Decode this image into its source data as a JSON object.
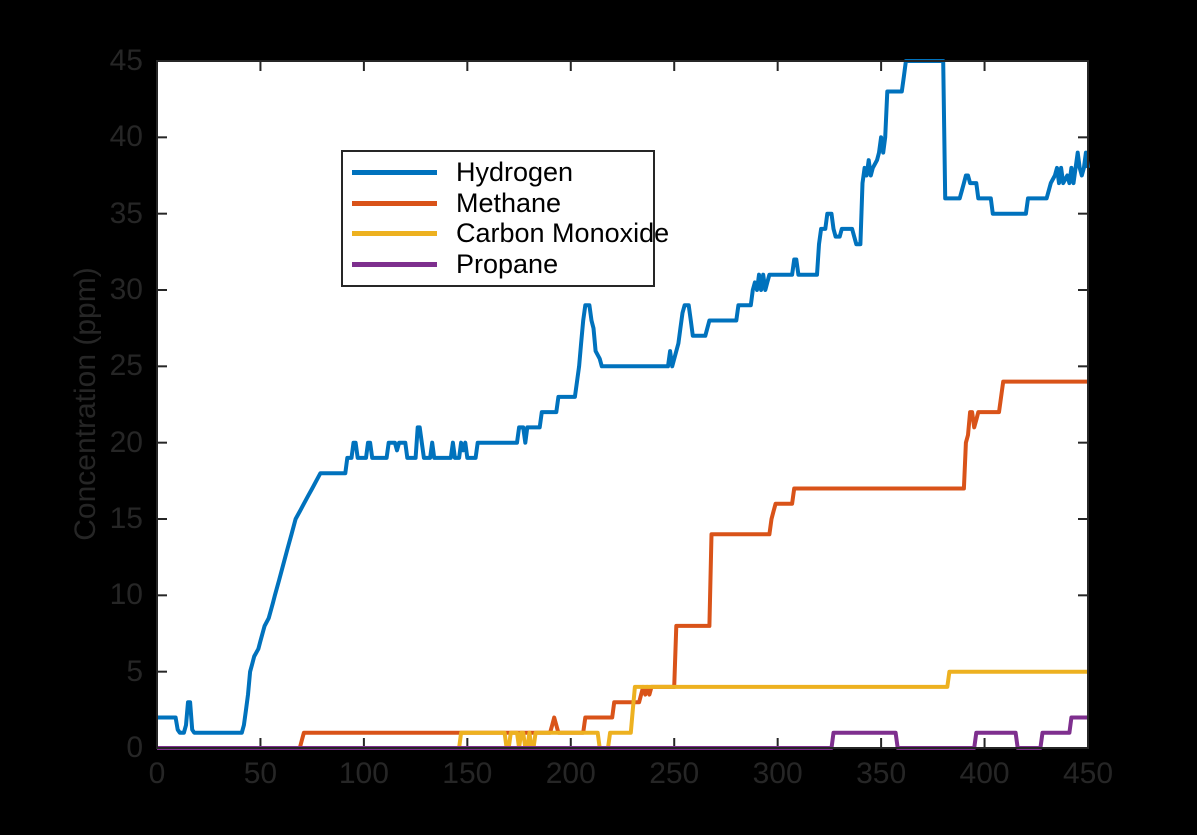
{
  "figure": {
    "background": "#000000",
    "plot_background": "#ffffff",
    "axis_color": "#262626",
    "tick_label_color": "#262626",
    "legend_text_color": "#000000"
  },
  "chart_data": {
    "type": "line",
    "title": "",
    "xlabel": "",
    "ylabel": "Concentration (ppm)",
    "xlim": [
      0,
      450
    ],
    "ylim": [
      0,
      45
    ],
    "xticks": [
      0,
      50,
      100,
      150,
      200,
      250,
      300,
      350,
      400,
      450
    ],
    "yticks": [
      0,
      5,
      10,
      15,
      20,
      25,
      30,
      35,
      40,
      45
    ],
    "grid": false,
    "legend_position": "upper-left",
    "line_width": 4,
    "series": [
      {
        "name": "Hydrogen",
        "color": "#0072BD",
        "points": [
          [
            0,
            2
          ],
          [
            9,
            2
          ],
          [
            10,
            1.2
          ],
          [
            11,
            1
          ],
          [
            13,
            1
          ],
          [
            14,
            1.5
          ],
          [
            15,
            3
          ],
          [
            16,
            3
          ],
          [
            17,
            1.2
          ],
          [
            18,
            1
          ],
          [
            41,
            1
          ],
          [
            42,
            1.5
          ],
          [
            43,
            2.5
          ],
          [
            44,
            3.5
          ],
          [
            45,
            5
          ],
          [
            46,
            5.5
          ],
          [
            47,
            6
          ],
          [
            49,
            6.5
          ],
          [
            50,
            7
          ],
          [
            51,
            7.5
          ],
          [
            52,
            8
          ],
          [
            54,
            8.5
          ],
          [
            55,
            9
          ],
          [
            56,
            9.5
          ],
          [
            57,
            10
          ],
          [
            59,
            11
          ],
          [
            61,
            12
          ],
          [
            63,
            13
          ],
          [
            65,
            14
          ],
          [
            67,
            15
          ],
          [
            69,
            15.5
          ],
          [
            71,
            16
          ],
          [
            73,
            16.5
          ],
          [
            75,
            17
          ],
          [
            77,
            17.5
          ],
          [
            79,
            18
          ],
          [
            91,
            18
          ],
          [
            92,
            19
          ],
          [
            94,
            19
          ],
          [
            95,
            20
          ],
          [
            96,
            20
          ],
          [
            97,
            19
          ],
          [
            101,
            19
          ],
          [
            102,
            20
          ],
          [
            103,
            20
          ],
          [
            104,
            19
          ],
          [
            111,
            19
          ],
          [
            112,
            20
          ],
          [
            115,
            20
          ],
          [
            116,
            19.5
          ],
          [
            117,
            20
          ],
          [
            120,
            20
          ],
          [
            121,
            19
          ],
          [
            125,
            19
          ],
          [
            126,
            21
          ],
          [
            127,
            21
          ],
          [
            128,
            20
          ],
          [
            129,
            19
          ],
          [
            132,
            19
          ],
          [
            133,
            20
          ],
          [
            134,
            19
          ],
          [
            142,
            19
          ],
          [
            143,
            20
          ],
          [
            144,
            19
          ],
          [
            146,
            19
          ],
          [
            147,
            20
          ],
          [
            148,
            19.5
          ],
          [
            149,
            20
          ],
          [
            150,
            19
          ],
          [
            154,
            19
          ],
          [
            155,
            20
          ],
          [
            174,
            20
          ],
          [
            175,
            21
          ],
          [
            177,
            21
          ],
          [
            178,
            20
          ],
          [
            179,
            21
          ],
          [
            185,
            21
          ],
          [
            186,
            22
          ],
          [
            193,
            22
          ],
          [
            194,
            23
          ],
          [
            202,
            23
          ],
          [
            203,
            24
          ],
          [
            204,
            25
          ],
          [
            205,
            26.5
          ],
          [
            206,
            28
          ],
          [
            207,
            29
          ],
          [
            209,
            29
          ],
          [
            210,
            28
          ],
          [
            211,
            27.5
          ],
          [
            212,
            26
          ],
          [
            214,
            25.5
          ],
          [
            215,
            25
          ],
          [
            247,
            25
          ],
          [
            248,
            26
          ],
          [
            249,
            25
          ],
          [
            251,
            26
          ],
          [
            252,
            26.5
          ],
          [
            253,
            27.5
          ],
          [
            254,
            28.5
          ],
          [
            255,
            29
          ],
          [
            257,
            29
          ],
          [
            258,
            28
          ],
          [
            259,
            27
          ],
          [
            265,
            27
          ],
          [
            267,
            28
          ],
          [
            280,
            28
          ],
          [
            281,
            29
          ],
          [
            287,
            29
          ],
          [
            288,
            30
          ],
          [
            289,
            30.5
          ],
          [
            290,
            30
          ],
          [
            291,
            31
          ],
          [
            292,
            30
          ],
          [
            293,
            31
          ],
          [
            294,
            30
          ],
          [
            295,
            30.5
          ],
          [
            296,
            31
          ],
          [
            307,
            31
          ],
          [
            308,
            32
          ],
          [
            309,
            32
          ],
          [
            310,
            31
          ],
          [
            319,
            31
          ],
          [
            320,
            33
          ],
          [
            321,
            34
          ],
          [
            323,
            34
          ],
          [
            324,
            35
          ],
          [
            326,
            35
          ],
          [
            327,
            34
          ],
          [
            328,
            33.5
          ],
          [
            330,
            33.5
          ],
          [
            331,
            34
          ],
          [
            336,
            34
          ],
          [
            337,
            33.5
          ],
          [
            338,
            33
          ],
          [
            340,
            33
          ],
          [
            341,
            37
          ],
          [
            342,
            38
          ],
          [
            343,
            37.5
          ],
          [
            344,
            38.5
          ],
          [
            345,
            37.5
          ],
          [
            346,
            38
          ],
          [
            348,
            38.5
          ],
          [
            349,
            39
          ],
          [
            350,
            40
          ],
          [
            351,
            39
          ],
          [
            352,
            40
          ],
          [
            353,
            43
          ],
          [
            360,
            43
          ],
          [
            361,
            44
          ],
          [
            362,
            45
          ],
          [
            380,
            45
          ],
          [
            381,
            36
          ],
          [
            388,
            36
          ],
          [
            389,
            36.5
          ],
          [
            390,
            37
          ],
          [
            391,
            37.5
          ],
          [
            392,
            37.5
          ],
          [
            393,
            37
          ],
          [
            396,
            37
          ],
          [
            397,
            36
          ],
          [
            403,
            36
          ],
          [
            404,
            35
          ],
          [
            420,
            35
          ],
          [
            421,
            36
          ],
          [
            430,
            36
          ],
          [
            431,
            36.5
          ],
          [
            432,
            37
          ],
          [
            434,
            37.5
          ],
          [
            435,
            38
          ],
          [
            436,
            37
          ],
          [
            437,
            38
          ],
          [
            438,
            37
          ],
          [
            440,
            37.5
          ],
          [
            441,
            37
          ],
          [
            442,
            38
          ],
          [
            443,
            37
          ],
          [
            444,
            38
          ],
          [
            445,
            39
          ],
          [
            446,
            38
          ],
          [
            447,
            37.5
          ],
          [
            448,
            38
          ],
          [
            449,
            39
          ],
          [
            450,
            38
          ]
        ]
      },
      {
        "name": "Methane",
        "color": "#D95319",
        "points": [
          [
            0,
            0
          ],
          [
            69,
            0
          ],
          [
            70,
            0.5
          ],
          [
            71,
            1
          ],
          [
            190,
            1
          ],
          [
            191,
            1.5
          ],
          [
            192,
            2
          ],
          [
            193,
            1.5
          ],
          [
            194,
            1
          ],
          [
            206,
            1
          ],
          [
            207,
            2
          ],
          [
            220,
            2
          ],
          [
            221,
            3
          ],
          [
            233,
            3
          ],
          [
            234,
            3.5
          ],
          [
            235,
            4
          ],
          [
            236,
            3.5
          ],
          [
            237,
            4
          ],
          [
            238,
            3.5
          ],
          [
            239,
            4
          ],
          [
            250,
            4
          ],
          [
            251,
            8
          ],
          [
            267,
            8
          ],
          [
            268,
            14
          ],
          [
            296,
            14
          ],
          [
            297,
            15
          ],
          [
            298,
            15.5
          ],
          [
            299,
            16
          ],
          [
            307,
            16
          ],
          [
            308,
            17
          ],
          [
            390,
            17
          ],
          [
            391,
            20
          ],
          [
            392,
            20.5
          ],
          [
            393,
            22
          ],
          [
            394,
            22
          ],
          [
            395,
            21
          ],
          [
            396,
            21.5
          ],
          [
            397,
            22
          ],
          [
            407,
            22
          ],
          [
            408,
            23
          ],
          [
            409,
            24
          ],
          [
            450,
            24
          ]
        ]
      },
      {
        "name": "Carbon Monoxide",
        "color": "#EDB120",
        "points": [
          [
            0,
            0
          ],
          [
            146,
            0
          ],
          [
            147,
            1
          ],
          [
            168,
            1
          ],
          [
            169,
            0
          ],
          [
            170,
            0
          ],
          [
            171,
            1
          ],
          [
            174,
            1
          ],
          [
            175,
            0
          ],
          [
            176,
            1
          ],
          [
            177,
            1
          ],
          [
            178,
            0
          ],
          [
            179,
            0
          ],
          [
            180,
            1
          ],
          [
            181,
            0
          ],
          [
            182,
            0
          ],
          [
            183,
            1
          ],
          [
            213,
            1
          ],
          [
            214,
            0
          ],
          [
            218,
            0
          ],
          [
            219,
            1
          ],
          [
            229,
            1
          ],
          [
            230,
            2.5
          ],
          [
            231,
            4
          ],
          [
            382,
            4
          ],
          [
            383,
            5
          ],
          [
            450,
            5
          ]
        ]
      },
      {
        "name": "Propane",
        "color": "#7E2F8E",
        "points": [
          [
            0,
            0
          ],
          [
            326,
            0
          ],
          [
            327,
            1
          ],
          [
            357,
            1
          ],
          [
            358,
            0
          ],
          [
            395,
            0
          ],
          [
            396,
            1
          ],
          [
            415,
            1
          ],
          [
            416,
            0
          ],
          [
            427,
            0
          ],
          [
            428,
            1
          ],
          [
            441,
            1
          ],
          [
            442,
            2
          ],
          [
            450,
            2
          ]
        ]
      }
    ]
  }
}
